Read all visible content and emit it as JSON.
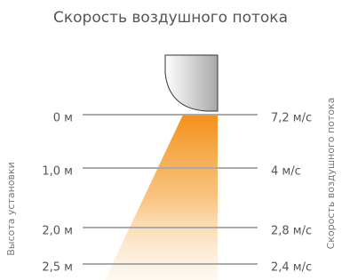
{
  "title": "Скорость воздушного потока",
  "left_axis_label": "Высота установки",
  "right_axis_label": "Скорость воздушного потока",
  "rows": [
    {
      "height": "0 м",
      "speed": "7,2 м/с"
    },
    {
      "height": "1,0 м",
      "speed": "4 м/с"
    },
    {
      "height": "2,0 м",
      "speed": "2,8 м/с"
    },
    {
      "height": "2,5 м",
      "speed": "2,4 м/с"
    }
  ]
}
